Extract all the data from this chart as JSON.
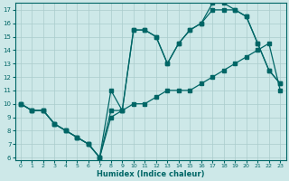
{
  "xlabel": "Humidex (Indice chaleur)",
  "bg_color": "#cde8e8",
  "grid_color": "#aacccc",
  "line_color": "#006666",
  "xlim": [
    -0.5,
    23.5
  ],
  "ylim": [
    5.8,
    17.5
  ],
  "xticks": [
    0,
    1,
    2,
    3,
    4,
    5,
    6,
    7,
    8,
    9,
    10,
    11,
    12,
    13,
    14,
    15,
    16,
    17,
    18,
    19,
    20,
    21,
    22,
    23
  ],
  "yticks": [
    6,
    7,
    8,
    9,
    10,
    11,
    12,
    13,
    14,
    15,
    16,
    17
  ],
  "line_bottom_x": [
    0,
    1,
    2,
    3,
    4,
    5,
    6,
    7,
    8,
    9,
    10,
    11,
    12,
    13,
    14,
    15,
    16,
    17,
    18,
    19,
    20,
    21,
    22,
    23
  ],
  "line_bottom_y": [
    10,
    9.5,
    9.5,
    8.5,
    8.0,
    7.5,
    7.0,
    6.0,
    9.0,
    9.5,
    10.0,
    10.0,
    10.5,
    11.0,
    11.0,
    11.0,
    11.5,
    12.0,
    12.5,
    13.0,
    13.5,
    14.0,
    14.5,
    11.0
  ],
  "line_mid_x": [
    0,
    1,
    2,
    3,
    4,
    5,
    6,
    7,
    8,
    9,
    10,
    11,
    12,
    13,
    14,
    15,
    16,
    17,
    18,
    19,
    20,
    21,
    22,
    23
  ],
  "line_mid_y": [
    10,
    9.5,
    9.5,
    8.5,
    8.0,
    7.5,
    7.0,
    6.0,
    9.5,
    9.5,
    15.5,
    15.5,
    15.0,
    13.0,
    14.5,
    15.5,
    16.0,
    17.0,
    17.0,
    17.0,
    16.5,
    14.5,
    12.5,
    11.5
  ],
  "line_top_x": [
    0,
    1,
    2,
    3,
    4,
    5,
    6,
    7,
    8,
    9,
    10,
    11,
    12,
    13,
    14,
    15,
    16,
    17,
    18,
    19,
    20,
    21,
    22,
    23
  ],
  "line_top_y": [
    10,
    9.5,
    9.5,
    8.5,
    8.0,
    7.5,
    7.0,
    6.0,
    11.0,
    9.5,
    15.5,
    15.5,
    15.0,
    13.0,
    14.5,
    15.5,
    16.0,
    17.5,
    17.5,
    17.0,
    16.5,
    14.5,
    12.5,
    11.5
  ]
}
